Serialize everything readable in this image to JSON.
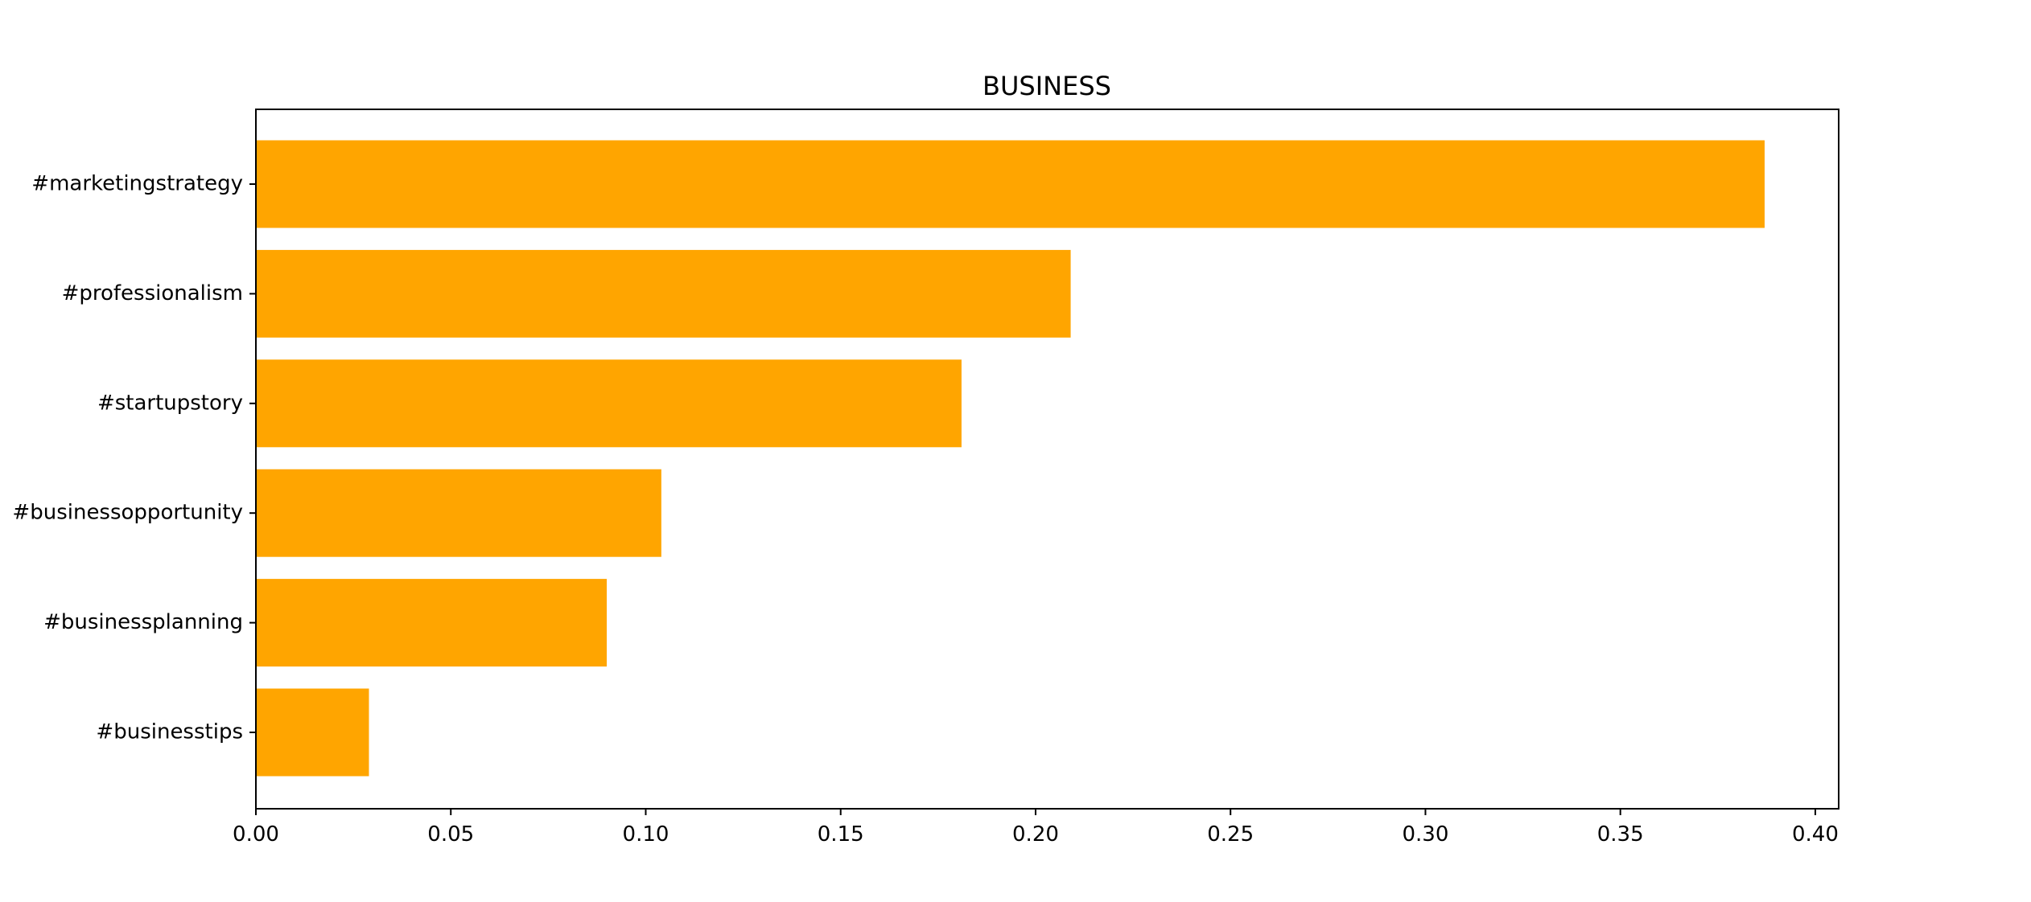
{
  "chart_data": {
    "type": "bar",
    "orientation": "horizontal",
    "title": "BUSINESS",
    "xlabel": "",
    "ylabel": "",
    "categories": [
      "#marketingstrategy",
      "#professionalism",
      "#startupstory",
      "#businessopportunity",
      "#businessplanning",
      "#businesstips"
    ],
    "values": [
      0.387,
      0.209,
      0.181,
      0.104,
      0.09,
      0.029
    ],
    "xlim": [
      0,
      0.406
    ],
    "xticks": [
      0.0,
      0.05,
      0.1,
      0.15,
      0.2,
      0.25,
      0.3,
      0.35,
      0.4
    ],
    "xtick_labels": [
      "0.00",
      "0.05",
      "0.10",
      "0.15",
      "0.20",
      "0.25",
      "0.30",
      "0.35",
      "0.40"
    ],
    "grid": false,
    "legend": "none",
    "bar_color": "#ffa500"
  }
}
